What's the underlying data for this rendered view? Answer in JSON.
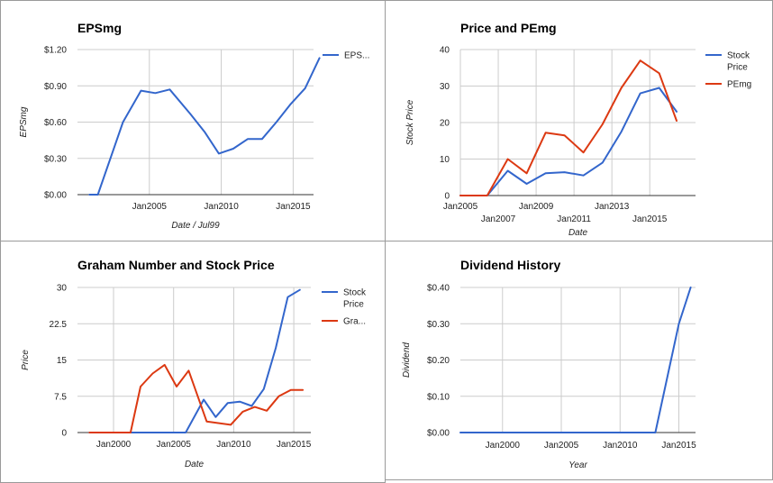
{
  "colors": {
    "blue": "#3366cc",
    "red": "#dc3912"
  },
  "chart_data": [
    {
      "type": "line",
      "title": "EPSmg",
      "xlabel": "Date / Jul99",
      "ylabel": "EPSmg",
      "x_type": "date",
      "xlim": [
        "2000-01",
        "2016-06"
      ],
      "ylim": [
        0,
        1.2
      ],
      "y_ticks": [
        "$0.00",
        "$0.30",
        "$0.60",
        "$0.90",
        "$1.20"
      ],
      "x_ticks": [
        {
          "label": "Jan2005",
          "x": "2005-01"
        },
        {
          "label": "Jan2010",
          "x": "2010-01"
        },
        {
          "label": "Jan2015",
          "x": "2015-01"
        }
      ],
      "legend_position": "right",
      "series": [
        {
          "name": "EPS...",
          "color": "#3366cc",
          "points": [
            {
              "x": "2000-11",
              "y": 0.0
            },
            {
              "x": "2001-06",
              "y": 0.0
            },
            {
              "x": "2003-03",
              "y": 0.6
            },
            {
              "x": "2004-06",
              "y": 0.86
            },
            {
              "x": "2005-06",
              "y": 0.84
            },
            {
              "x": "2006-06",
              "y": 0.87
            },
            {
              "x": "2007-11",
              "y": 0.67
            },
            {
              "x": "2008-11",
              "y": 0.52
            },
            {
              "x": "2009-11",
              "y": 0.34
            },
            {
              "x": "2010-11",
              "y": 0.38
            },
            {
              "x": "2011-11",
              "y": 0.46
            },
            {
              "x": "2012-11",
              "y": 0.46
            },
            {
              "x": "2013-11",
              "y": 0.6
            },
            {
              "x": "2014-11",
              "y": 0.75
            },
            {
              "x": "2015-11",
              "y": 0.88
            },
            {
              "x": "2016-11",
              "y": 1.13
            }
          ]
        }
      ]
    },
    {
      "type": "line",
      "title": "Price and PEmg",
      "xlabel": "Date",
      "ylabel": "Stock Price",
      "x_type": "date",
      "xlim": [
        "2005-01",
        "2017-06"
      ],
      "ylim": [
        0,
        40
      ],
      "y_ticks": [
        "0",
        "10",
        "20",
        "30",
        "40"
      ],
      "x_ticks": [
        {
          "label": "Jan2005",
          "x": "2005-01",
          "row": 0
        },
        {
          "label": "Jan2007",
          "x": "2007-01",
          "row": 1
        },
        {
          "label": "Jan2009",
          "x": "2009-01",
          "row": 0
        },
        {
          "label": "Jan2011",
          "x": "2011-01",
          "row": 1
        },
        {
          "label": "Jan2013",
          "x": "2013-01",
          "row": 0
        },
        {
          "label": "Jan2015",
          "x": "2015-01",
          "row": 1
        }
      ],
      "legend_position": "right",
      "series": [
        {
          "name": "Stock Price",
          "color": "#3366cc",
          "points": [
            {
              "x": "2005-01",
              "y": 0
            },
            {
              "x": "2006-06",
              "y": 0
            },
            {
              "x": "2007-07",
              "y": 6.8
            },
            {
              "x": "2008-07",
              "y": 3.2
            },
            {
              "x": "2009-07",
              "y": 6.1
            },
            {
              "x": "2010-07",
              "y": 6.4
            },
            {
              "x": "2011-07",
              "y": 5.5
            },
            {
              "x": "2012-07",
              "y": 9.0
            },
            {
              "x": "2013-07",
              "y": 17.5
            },
            {
              "x": "2014-07",
              "y": 28.0
            },
            {
              "x": "2015-07",
              "y": 29.5
            },
            {
              "x": "2016-06",
              "y": 23.0
            }
          ]
        },
        {
          "name": "PEmg",
          "color": "#dc3912",
          "points": [
            {
              "x": "2005-01",
              "y": 0
            },
            {
              "x": "2006-06",
              "y": 0
            },
            {
              "x": "2007-07",
              "y": 10.0
            },
            {
              "x": "2008-07",
              "y": 6.1
            },
            {
              "x": "2009-07",
              "y": 17.2
            },
            {
              "x": "2010-07",
              "y": 16.5
            },
            {
              "x": "2011-07",
              "y": 11.8
            },
            {
              "x": "2012-07",
              "y": 19.5
            },
            {
              "x": "2013-07",
              "y": 29.5
            },
            {
              "x": "2014-07",
              "y": 37.0
            },
            {
              "x": "2015-07",
              "y": 33.5
            },
            {
              "x": "2016-06",
              "y": 20.5
            }
          ]
        }
      ]
    },
    {
      "type": "line",
      "title": "Graham Number and Stock Price",
      "xlabel": "Date",
      "ylabel": "Price",
      "x_type": "date",
      "xlim": [
        "1997-01",
        "2016-06"
      ],
      "ylim": [
        0,
        30
      ],
      "y_ticks": [
        "0",
        "7.5",
        "15",
        "22.5",
        "30"
      ],
      "x_ticks": [
        {
          "label": "Jan2000",
          "x": "2000-01"
        },
        {
          "label": "Jan2005",
          "x": "2005-01"
        },
        {
          "label": "Jan2010",
          "x": "2010-01"
        },
        {
          "label": "Jan2015",
          "x": "2015-01"
        }
      ],
      "legend_position": "right",
      "series": [
        {
          "name": "Stock Price",
          "color": "#3366cc",
          "points": [
            {
              "x": "1998-01",
              "y": 0
            },
            {
              "x": "2006-01",
              "y": 0
            },
            {
              "x": "2007-07",
              "y": 6.8
            },
            {
              "x": "2008-07",
              "y": 3.2
            },
            {
              "x": "2009-07",
              "y": 6.1
            },
            {
              "x": "2010-07",
              "y": 6.4
            },
            {
              "x": "2011-07",
              "y": 5.5
            },
            {
              "x": "2012-07",
              "y": 9.0
            },
            {
              "x": "2013-07",
              "y": 17.5
            },
            {
              "x": "2014-07",
              "y": 28.0
            },
            {
              "x": "2015-07",
              "y": 29.5
            }
          ]
        },
        {
          "name": "Gra...",
          "color": "#dc3912",
          "points": [
            {
              "x": "1998-01",
              "y": 0
            },
            {
              "x": "2001-06",
              "y": 0
            },
            {
              "x": "2002-04",
              "y": 9.5
            },
            {
              "x": "2003-04",
              "y": 12.2
            },
            {
              "x": "2004-04",
              "y": 14.0
            },
            {
              "x": "2005-04",
              "y": 9.5
            },
            {
              "x": "2006-04",
              "y": 12.8
            },
            {
              "x": "2007-10",
              "y": 2.3
            },
            {
              "x": "2009-10",
              "y": 1.6
            },
            {
              "x": "2010-10",
              "y": 4.3
            },
            {
              "x": "2011-10",
              "y": 5.3
            },
            {
              "x": "2012-10",
              "y": 4.5
            },
            {
              "x": "2013-10",
              "y": 7.5
            },
            {
              "x": "2014-10",
              "y": 8.8
            },
            {
              "x": "2015-10",
              "y": 8.8
            }
          ]
        }
      ]
    },
    {
      "type": "line",
      "title": "Dividend History",
      "xlabel": "Year",
      "ylabel": "Dividend",
      "x_type": "date",
      "xlim": [
        "1996-06",
        "2016-06"
      ],
      "ylim": [
        0,
        0.4
      ],
      "y_ticks": [
        "$0.00",
        "$0.10",
        "$0.20",
        "$0.30",
        "$0.40"
      ],
      "x_ticks": [
        {
          "label": "Jan2000",
          "x": "2000-01"
        },
        {
          "label": "Jan2005",
          "x": "2005-01"
        },
        {
          "label": "Jan2010",
          "x": "2010-01"
        },
        {
          "label": "Jan2015",
          "x": "2015-01"
        }
      ],
      "legend_position": "none",
      "series": [
        {
          "color": "#3366cc",
          "points": [
            {
              "x": "1996-06",
              "y": 0
            },
            {
              "x": "2013-01",
              "y": 0
            },
            {
              "x": "2015-01",
              "y": 0.3
            },
            {
              "x": "2016-01",
              "y": 0.4
            }
          ]
        }
      ]
    }
  ]
}
